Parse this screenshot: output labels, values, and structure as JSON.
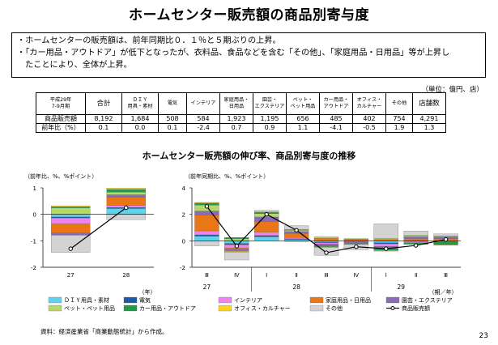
{
  "title": "ホームセンター販売額の商品別寄与度",
  "summary": {
    "bullet1": "・ホームセンターの販売額は、前年同期比０．１％と５期ぶりの上昇。",
    "bullet2a": "・「カー用品・アウトドア」が低下となったが、衣料品、食品などを含む「その他」、「家庭用品・日用品」等が上昇し",
    "bullet2b": "たことにより、全体が上昇。"
  },
  "table": {
    "unit": "（単位：億円、店）",
    "period_line1": "平成29年",
    "period_line2": "7-9月期",
    "headers": [
      {
        "l1": "合計",
        "l2": ""
      },
      {
        "l1": "ＤＩＹ",
        "l2": "用具・素材"
      },
      {
        "l1": "電気",
        "l2": ""
      },
      {
        "l1": "インテリア",
        "l2": ""
      },
      {
        "l1": "家庭用品・",
        "l2": "日用品"
      },
      {
        "l1": "園芸・",
        "l2": "エクステリア"
      },
      {
        "l1": "ペット・",
        "l2": "ペット用品"
      },
      {
        "l1": "カー用品・",
        "l2": "アウトドア"
      },
      {
        "l1": "オフィス・",
        "l2": "カルチャー"
      },
      {
        "l1": "その他",
        "l2": ""
      },
      {
        "l1": "店舗数",
        "l2": ""
      }
    ],
    "rows": [
      {
        "label": "商品販売額",
        "values": [
          "8,192",
          "1,684",
          "508",
          "584",
          "1,923",
          "1,195",
          "656",
          "485",
          "402",
          "754",
          "4,291"
        ]
      },
      {
        "label": "前年比（%）",
        "values": [
          "0.1",
          "0.0",
          "0.1",
          "-2.4",
          "0.7",
          "0.9",
          "1.1",
          "-4.1",
          "-0.5",
          "1.9",
          "1.3"
        ]
      }
    ]
  },
  "chart_title": "ホームセンター販売額の伸び率、商品別寄与度の推移",
  "colors": {
    "diy": "#5fd3ee",
    "denki": "#1d5aa8",
    "interior": "#ee82ee",
    "kitchen": "#ea7616",
    "garden": "#8a6bb8",
    "pet": "#b6d86a",
    "car": "#1f9b49",
    "office": "#ffd21e",
    "other": "#d3d3d3",
    "total": "#000000"
  },
  "chart_data": [
    {
      "type": "bar",
      "stacked": true,
      "ylabel": "（前年比、%、%ポイント）",
      "xlabel": "（年）",
      "ylim": [
        -2,
        1
      ],
      "yticks": [
        "1",
        "0",
        "-1",
        "-2"
      ],
      "categories": [
        "27",
        "28"
      ],
      "series": [
        {
          "name": "ＤＩＹ用具・素材",
          "key": "diy",
          "values": [
            -0.1,
            0.22
          ]
        },
        {
          "name": "電気",
          "key": "denki",
          "values": [
            -0.04,
            0.04
          ]
        },
        {
          "name": "インテリア",
          "key": "interior",
          "values": [
            -0.22,
            0.08
          ]
        },
        {
          "name": "家庭用品・日用品",
          "key": "kitchen",
          "values": [
            -0.35,
            0.3
          ]
        },
        {
          "name": "園芸・エクステリア",
          "key": "garden",
          "values": [
            -0.08,
            0.1
          ]
        },
        {
          "name": "ペット・ペット用品",
          "key": "pet",
          "values": [
            0.24,
            0.1
          ]
        },
        {
          "name": "カー用品・アウトドア",
          "key": "car",
          "values": [
            0.04,
            0.1
          ]
        },
        {
          "name": "オフィス・カルチャー",
          "key": "office",
          "values": [
            0.04,
            0.05
          ]
        },
        {
          "name": "その他",
          "key": "other",
          "values": [
            -0.65,
            -0.2
          ]
        }
      ],
      "line": {
        "name": "商品販売額",
        "values": [
          -1.3,
          0.25
        ]
      }
    },
    {
      "type": "bar",
      "stacked": true,
      "ylabel": "（前年同期比、%、%ポイント）",
      "xlabel": "（期／年）",
      "ylim": [
        -2,
        4
      ],
      "yticks": [
        "4",
        "2",
        "0",
        "-2"
      ],
      "categories": [
        "Ⅲ",
        "Ⅳ",
        "Ⅰ",
        "Ⅱ",
        "Ⅲ",
        "Ⅳ",
        "Ⅰ",
        "Ⅱ",
        "Ⅲ"
      ],
      "year_labels": [
        {
          "text": "27",
          "at": 0.5
        },
        {
          "text": "28",
          "at": 3.5
        },
        {
          "text": "29",
          "at": 7
        }
      ],
      "series": [
        {
          "name": "ＤＩＹ用具・素材",
          "key": "diy",
          "values": [
            0.35,
            -0.2,
            0.3,
            0.1,
            -0.1,
            -0.05,
            -0.15,
            -0.05,
            0.0
          ]
        },
        {
          "name": "電気",
          "key": "denki",
          "values": [
            0.1,
            -0.1,
            0.1,
            0.05,
            -0.05,
            0.02,
            -0.08,
            0.02,
            0.01
          ]
        },
        {
          "name": "インテリア",
          "key": "interior",
          "values": [
            0.3,
            -0.25,
            0.25,
            0.1,
            -0.1,
            -0.05,
            -0.2,
            -0.1,
            -0.06
          ]
        },
        {
          "name": "家庭用品・日用品",
          "key": "kitchen",
          "values": [
            1.2,
            -0.1,
            0.8,
            0.3,
            0.2,
            0.1,
            0.1,
            0.15,
            0.16
          ]
        },
        {
          "name": "園芸・エクステリア",
          "key": "garden",
          "values": [
            0.3,
            -0.15,
            0.35,
            0.15,
            -0.1,
            -0.1,
            -0.2,
            0.15,
            0.13
          ]
        },
        {
          "name": "ペット・ペット用品",
          "key": "pet",
          "values": [
            0.45,
            0.15,
            0.25,
            0.1,
            0.1,
            0.05,
            0.08,
            0.12,
            0.08
          ]
        },
        {
          "name": "カー用品・アウトドア",
          "key": "car",
          "values": [
            0.15,
            0.1,
            0.1,
            0.05,
            -0.1,
            -0.05,
            -0.1,
            -0.1,
            -0.24
          ]
        },
        {
          "name": "オフィス・カルチャー",
          "key": "office",
          "values": [
            0.05,
            -0.05,
            0.05,
            -0.05,
            -0.05,
            -0.02,
            -0.05,
            -0.02,
            -0.02
          ]
        },
        {
          "name": "その他",
          "key": "other",
          "values": [
            -0.4,
            -0.6,
            0.1,
            0.3,
            -0.6,
            -0.4,
            1.1,
            0.3,
            0.14
          ]
        }
      ],
      "line": {
        "name": "商品販売額",
        "values": [
          2.6,
          -0.4,
          2.0,
          0.8,
          -0.9,
          -0.45,
          -0.6,
          -0.35,
          0.1
        ]
      }
    }
  ],
  "source": "資料：経済産業省「商業動態統計」から作成。",
  "page_number": "23"
}
